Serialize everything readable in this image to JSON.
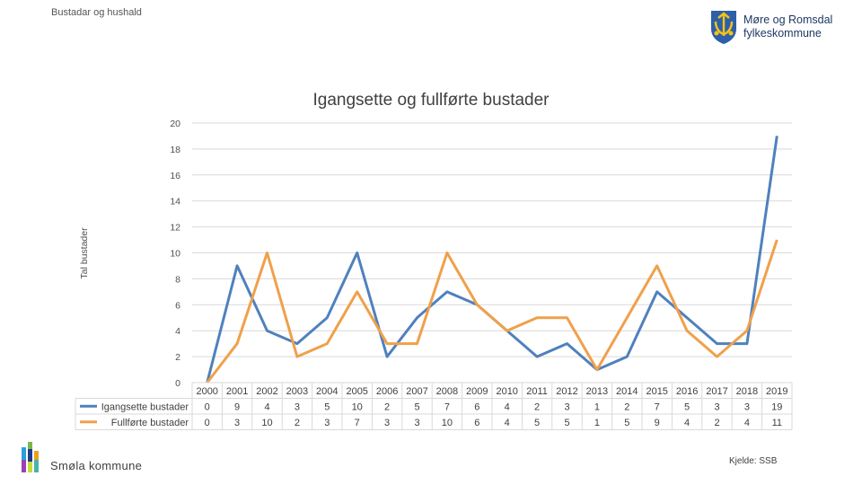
{
  "header": {
    "section_title": "Bustadar og hushald"
  },
  "logo": {
    "line1": "Møre og Romsdal",
    "line2": "fylkeskommune"
  },
  "footer": {
    "municipality": "Smøla kommune",
    "source": "Kjelde: SSB"
  },
  "colors": {
    "series1": "#4f81bd",
    "series2": "#f0a04b",
    "grid": "#d9d9d9"
  },
  "chart_data": {
    "type": "line",
    "title": "Igangsette og fullførte bustader",
    "ylabel": "Tal bustader",
    "xlabel": "",
    "ylim": [
      0,
      20
    ],
    "yticks": [
      0,
      2,
      4,
      6,
      8,
      10,
      12,
      14,
      16,
      18,
      20
    ],
    "categories": [
      "2000",
      "2001",
      "2002",
      "2003",
      "2004",
      "2005",
      "2006",
      "2007",
      "2008",
      "2009",
      "2010",
      "2011",
      "2012",
      "2013",
      "2014",
      "2015",
      "2016",
      "2017",
      "2018",
      "2019"
    ],
    "series": [
      {
        "name": "Igangsette bustader",
        "values": [
          0,
          9,
          4,
          3,
          5,
          10,
          2,
          5,
          7,
          6,
          4,
          2,
          3,
          1,
          2,
          7,
          5,
          3,
          3,
          19
        ]
      },
      {
        "name": "Fullførte bustader",
        "values": [
          0,
          3,
          10,
          2,
          3,
          7,
          3,
          3,
          10,
          6,
          4,
          5,
          5,
          1,
          5,
          9,
          4,
          2,
          4,
          11
        ]
      }
    ],
    "grid": true,
    "legend": "data-table-bottom"
  }
}
